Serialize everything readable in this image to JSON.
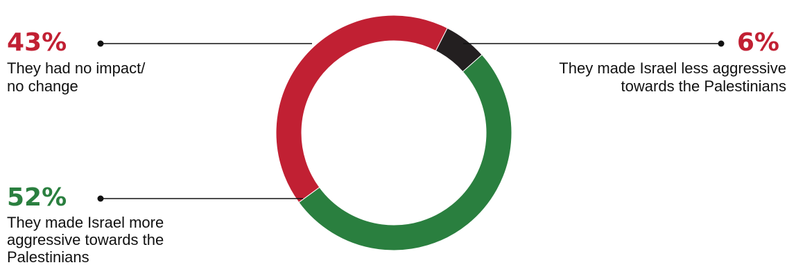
{
  "chart_data": {
    "type": "pie",
    "variant": "donut",
    "title": "",
    "legend": "none",
    "slices": [
      {
        "value": 6,
        "label": "6%",
        "lines": [
          "They made Israel less aggressive",
          "towards  the Palestinians"
        ],
        "color": "#231f20"
      },
      {
        "value": 52,
        "label": "52%",
        "lines": [
          "They made Israel more",
          "aggressive towards the",
          "Palestinians"
        ],
        "color": "#2a7f3f"
      },
      {
        "value": 43,
        "label": "43%",
        "lines": [
          "They had no impact/",
          "no change"
        ],
        "color": "#c12033"
      }
    ],
    "label_colors": {
      "43%": "#c12033",
      "52%": "#2a7f3f",
      "6%": "#c12033"
    }
  }
}
